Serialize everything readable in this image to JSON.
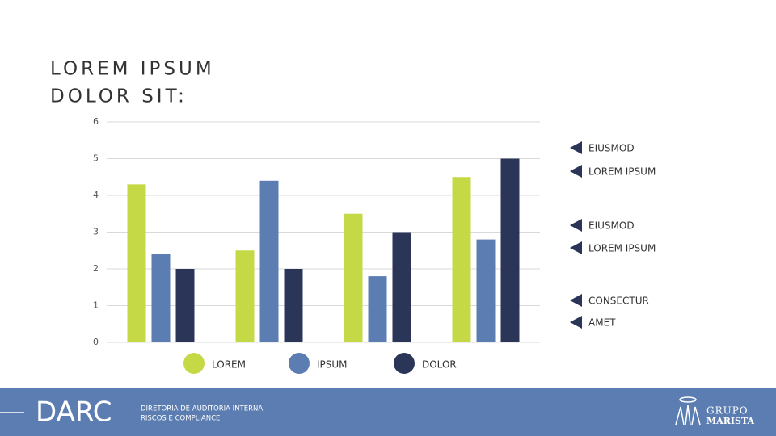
{
  "slide": {
    "title": [
      "LOREM IPSUM",
      "DOLOR SIT:"
    ],
    "annotations": [
      "EIUSMOD",
      "LOREM IPSUM",
      "EIUSMOD",
      "LOREM IPSUM",
      "CONSECTUR",
      "AMET"
    ],
    "footer": {
      "brand": "DARC",
      "subtitle": [
        "DIRETORIA DE AUDITORIA INTERNA,",
        "RISCOS E COMPLIANCE"
      ],
      "logo": [
        "GRUPO",
        "MARISTA"
      ]
    }
  },
  "chart_data": {
    "type": "bar",
    "categories": [
      null,
      null,
      null,
      null
    ],
    "series": [
      {
        "name": "LOREM",
        "color": "#c5d846",
        "values": [
          4.3,
          2.5,
          3.5,
          4.5
        ]
      },
      {
        "name": "IPSUM",
        "color": "#5b7db1",
        "values": [
          2.4,
          4.4,
          1.8,
          2.8
        ]
      },
      {
        "name": "DOLOR",
        "color": "#2b3558",
        "values": [
          2,
          2,
          3,
          5
        ]
      }
    ],
    "ylim": [
      0,
      6
    ],
    "yticks": [
      0,
      1,
      2,
      3,
      4,
      5,
      6
    ],
    "grid": true,
    "legend": "bottom"
  }
}
